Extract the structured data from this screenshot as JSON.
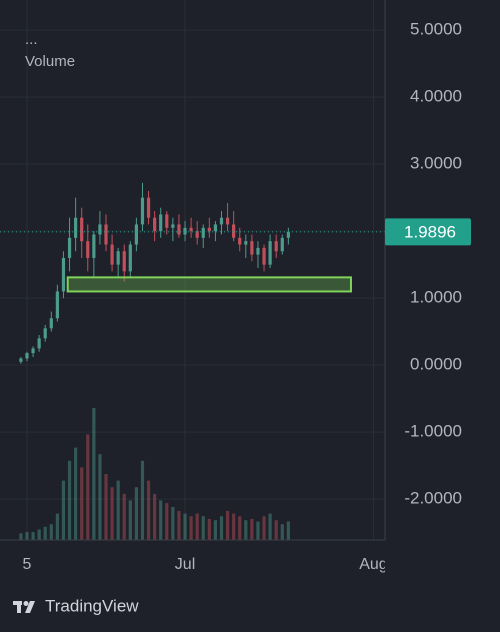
{
  "chart_data": {
    "type": "candlestick",
    "legend_title": "...",
    "volume_label": "Volume",
    "x": [
      -1,
      0,
      1,
      2,
      3,
      4,
      5,
      6,
      7,
      8,
      9,
      10,
      11,
      12,
      13,
      14,
      15,
      16,
      17,
      18,
      19,
      20,
      21,
      22,
      23,
      24,
      25,
      26,
      27,
      28,
      29,
      30,
      31,
      32,
      33,
      34,
      35,
      36,
      37,
      38,
      39,
      40,
      41,
      42,
      43
    ],
    "open": [
      0.05,
      0.1,
      0.18,
      0.25,
      0.4,
      0.55,
      0.7,
      1.1,
      1.6,
      1.9,
      2.2,
      1.85,
      1.6,
      1.95,
      2.1,
      1.8,
      1.5,
      1.7,
      1.4,
      1.8,
      2.1,
      2.5,
      2.2,
      2.0,
      2.25,
      2.05,
      2.1,
      1.95,
      2.05,
      2.0,
      1.9,
      2.05,
      2.0,
      2.1,
      2.2,
      2.1,
      1.9,
      1.8,
      1.85,
      1.65,
      1.75,
      1.5,
      1.85,
      1.7,
      1.9
    ],
    "high": [
      0.12,
      0.2,
      0.28,
      0.45,
      0.6,
      0.8,
      1.2,
      1.7,
      2.2,
      2.5,
      2.35,
      2.1,
      2.0,
      2.3,
      2.25,
      1.95,
      1.75,
      1.8,
      1.85,
      2.2,
      2.72,
      2.6,
      2.3,
      2.35,
      2.3,
      2.2,
      2.25,
      2.15,
      2.2,
      2.15,
      2.1,
      2.2,
      2.15,
      2.3,
      2.42,
      2.3,
      2.05,
      1.95,
      1.95,
      1.85,
      1.8,
      1.95,
      1.95,
      1.95,
      2.05
    ],
    "low": [
      0.02,
      0.06,
      0.12,
      0.2,
      0.35,
      0.5,
      0.65,
      1.0,
      1.4,
      1.7,
      1.6,
      1.4,
      1.3,
      1.8,
      1.7,
      1.4,
      1.3,
      1.25,
      1.3,
      1.7,
      2.0,
      2.1,
      1.85,
      1.9,
      1.95,
      1.85,
      1.9,
      1.85,
      1.9,
      1.8,
      1.75,
      1.9,
      1.85,
      1.95,
      2.0,
      1.85,
      1.7,
      1.6,
      1.55,
      1.45,
      1.4,
      1.45,
      1.6,
      1.65,
      1.8
    ],
    "close": [
      0.1,
      0.18,
      0.25,
      0.4,
      0.55,
      0.7,
      1.1,
      1.6,
      1.9,
      2.2,
      1.85,
      1.6,
      1.95,
      2.1,
      1.8,
      1.5,
      1.7,
      1.4,
      1.8,
      2.1,
      2.5,
      2.2,
      2.0,
      2.25,
      2.05,
      2.1,
      1.95,
      2.05,
      2.0,
      1.9,
      2.05,
      2.0,
      2.1,
      2.2,
      2.1,
      1.9,
      1.8,
      1.85,
      1.65,
      1.75,
      1.5,
      1.85,
      1.7,
      1.9,
      1.9896
    ],
    "volume": [
      5,
      6,
      6,
      8,
      10,
      12,
      20,
      45,
      60,
      70,
      55,
      80,
      100,
      65,
      50,
      40,
      45,
      35,
      30,
      40,
      60,
      45,
      35,
      30,
      28,
      25,
      22,
      20,
      18,
      20,
      18,
      16,
      15,
      18,
      22,
      20,
      18,
      15,
      16,
      14,
      18,
      20,
      15,
      12,
      14
    ],
    "up_color": "#4d9b8c",
    "down_color": "#c2505c",
    "xlim": [
      -4.44,
      58.9
    ],
    "xticks": [
      {
        "value": 0,
        "label": "5"
      },
      {
        "value": 26,
        "label": "Jul"
      },
      {
        "value": 57,
        "label": "Aug"
      }
    ],
    "ylim": [
      -2.61,
      5.45
    ],
    "yticks": [
      {
        "value": 5,
        "label": "5.0000"
      },
      {
        "value": 4,
        "label": "4.0000"
      },
      {
        "value": 3,
        "label": "3.0000"
      },
      {
        "value": 2,
        "label": "2.0000"
      },
      {
        "value": 1,
        "label": "1.0000"
      },
      {
        "value": 0,
        "label": "0.0000"
      },
      {
        "value": -1,
        "label": "-1.0000"
      },
      {
        "value": -2,
        "label": "-2.0000"
      }
    ],
    "grid": true,
    "last_price": 1.9896,
    "last_price_color": "#22a08c",
    "zone": {
      "x": [
        6.7,
        53.3
      ],
      "y": [
        1.1,
        1.31
      ],
      "color": "#7fd35a"
    }
  },
  "brand": "TradingView"
}
